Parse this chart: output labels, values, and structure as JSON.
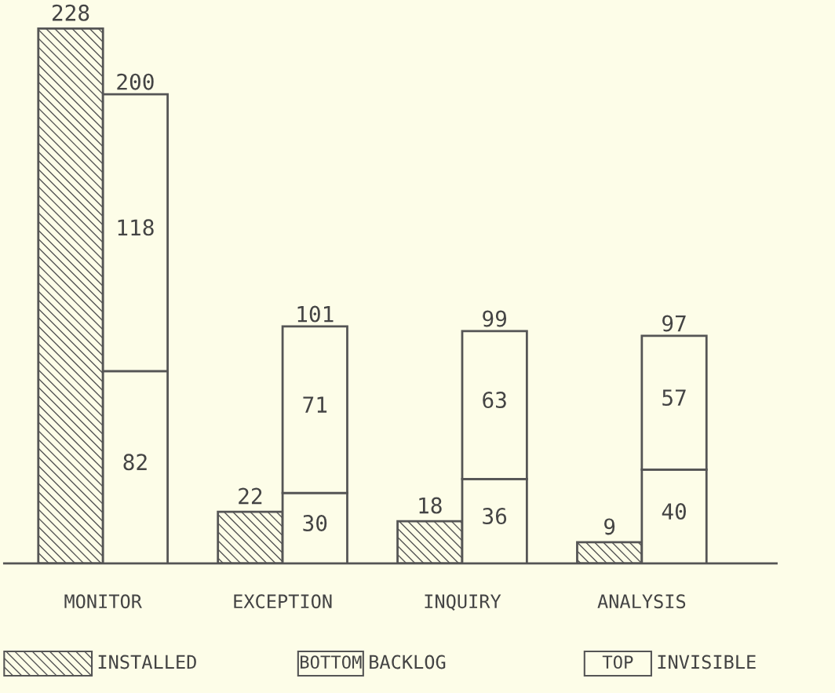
{
  "chart_data": [
    {
      "type": "bar",
      "categories": [
        "MONITOR",
        "EXCEPTION",
        "INQUIRY",
        "ANALYSIS"
      ],
      "series": [
        {
          "name": "INSTALLED",
          "color": "#555555",
          "values": [
            228,
            22,
            18,
            9
          ]
        }
      ],
      "data_labels": true,
      "grid": false,
      "legend": "bottom"
    },
    {
      "type": "bar",
      "categories": [
        null,
        null,
        null,
        null
      ],
      "series": [
        {
          "name": "BACKLOG",
          "color": "#fdfde8",
          "values": [
            82,
            30,
            36,
            40
          ]
        },
        {
          "name": "INVISIBLE",
          "color": "#fdfde8",
          "values": [
            118,
            71,
            63,
            57
          ]
        }
      ],
      "stacked": true,
      "data_labels": true,
      "totals": [
        "200",
        "101",
        "99",
        "97"
      ],
      "grid": false,
      "legend": "bottom",
      "annotations": [
        "BOTTOM",
        "TOP"
      ]
    }
  ]
}
